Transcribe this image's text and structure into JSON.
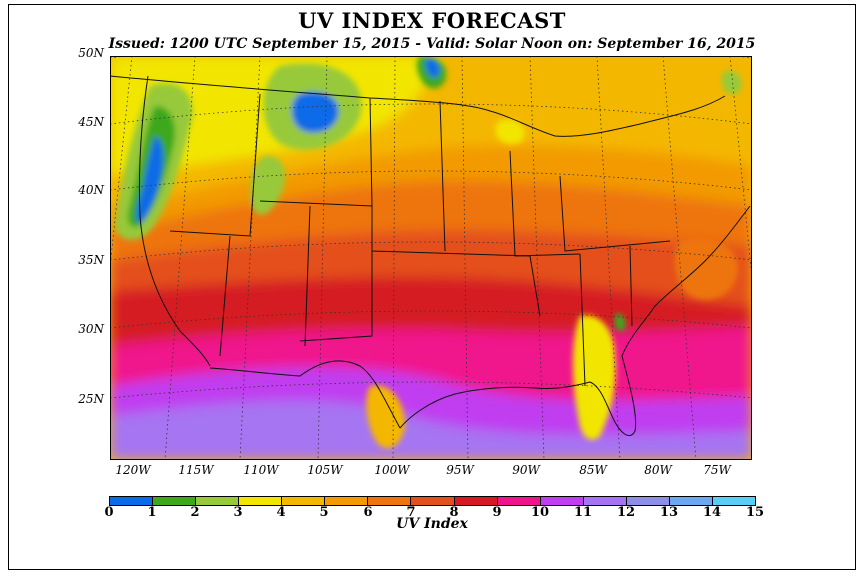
{
  "title": "UV INDEX FORECAST",
  "subtitle": "Issued: 1200 UTC September 15, 2015  -  Valid: Solar Noon on: September 16, 2015",
  "lat_labels": [
    "50N",
    "45N",
    "40N",
    "35N",
    "30N",
    "25N"
  ],
  "lon_labels": [
    "120W",
    "115W",
    "110W",
    "105W",
    "100W",
    "95W",
    "90W",
    "85W",
    "80W",
    "75W"
  ],
  "colorbar": {
    "title": "UV Index",
    "ticks": [
      "0",
      "1",
      "2",
      "3",
      "4",
      "5",
      "6",
      "7",
      "8",
      "9",
      "10",
      "11",
      "12",
      "13",
      "14",
      "15"
    ],
    "colors": [
      "#0a6be8",
      "#3ea81c",
      "#97c93a",
      "#f2e600",
      "#f4b700",
      "#f29a00",
      "#ee7410",
      "#e4501c",
      "#d51a22",
      "#f0148c",
      "#c03ef0",
      "#a674f2",
      "#8e8ee6",
      "#6ba8f2",
      "#58cdf6"
    ]
  },
  "map_colors": {
    "blue": "#0a6be8",
    "green": "#3ea81c",
    "lightgreen": "#97c93a",
    "yellow": "#f2e600",
    "gold": "#f4b700",
    "orange": "#f29a00",
    "darkorange": "#ee7410",
    "redorange": "#e4501c",
    "red": "#d51a22",
    "pink": "#f0148c",
    "purple": "#c03ef0",
    "lavender": "#a674f2",
    "periwinkle": "#8e8ee6"
  }
}
